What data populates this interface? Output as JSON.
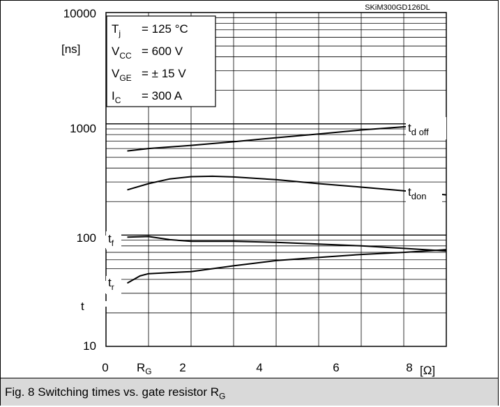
{
  "chart_data": {
    "type": "line",
    "figure_id": "SKiM300GD126DL",
    "x_axis": {
      "min": 0,
      "max": 8,
      "ticks": [
        "0",
        "2",
        "4",
        "6",
        "8"
      ],
      "symbol": "R",
      "symbol_sub": "G",
      "unit": "[Ω]"
    },
    "y_axis": {
      "scale": "log",
      "min": 10,
      "max": 10000,
      "ticks": [
        "10",
        "100",
        "1000",
        "10000"
      ],
      "unit": "[ns]",
      "symbol": "t"
    },
    "conditions": [
      {
        "sym": "T",
        "sub": "j",
        "value": "= 125 °C"
      },
      {
        "sym": "V",
        "sub": "CC",
        "value": "= 600 V"
      },
      {
        "sym": "V",
        "sub": "GE",
        "value": "= ± 15 V"
      },
      {
        "sym": "I",
        "sub": "C",
        "value": "= 300 A"
      }
    ],
    "series": [
      {
        "name": "t",
        "sub": "d off",
        "points": [
          [
            0.5,
            570
          ],
          [
            1,
            600
          ],
          [
            2,
            640
          ],
          [
            3,
            690
          ],
          [
            4,
            750
          ],
          [
            5,
            810
          ],
          [
            6,
            880
          ],
          [
            7,
            940
          ],
          [
            8,
            1000
          ]
        ]
      },
      {
        "name": "t",
        "sub": "don",
        "points": [
          [
            0.5,
            255
          ],
          [
            1,
            290
          ],
          [
            1.5,
            320
          ],
          [
            2,
            335
          ],
          [
            2.5,
            338
          ],
          [
            3,
            333
          ],
          [
            4,
            315
          ],
          [
            5,
            290
          ],
          [
            6,
            270
          ],
          [
            7,
            250
          ],
          [
            8,
            230
          ]
        ]
      },
      {
        "name": "t",
        "sub": "f",
        "points": [
          [
            0.5,
            96
          ],
          [
            1,
            97
          ],
          [
            1.5,
            91
          ],
          [
            2,
            88
          ],
          [
            3,
            88
          ],
          [
            4,
            86
          ],
          [
            5,
            83
          ],
          [
            6,
            80
          ],
          [
            7,
            76
          ],
          [
            8,
            72
          ]
        ]
      },
      {
        "name": "t",
        "sub": "r",
        "points": [
          [
            0.5,
            37
          ],
          [
            0.8,
            43
          ],
          [
            1,
            45
          ],
          [
            2,
            47
          ],
          [
            3,
            53
          ],
          [
            4,
            59
          ],
          [
            5,
            63
          ],
          [
            6,
            67
          ],
          [
            7,
            70
          ],
          [
            8,
            74
          ]
        ]
      }
    ]
  },
  "caption": {
    "text": "Fig. 8 Switching times vs. gate resistor R",
    "sub": "G"
  }
}
